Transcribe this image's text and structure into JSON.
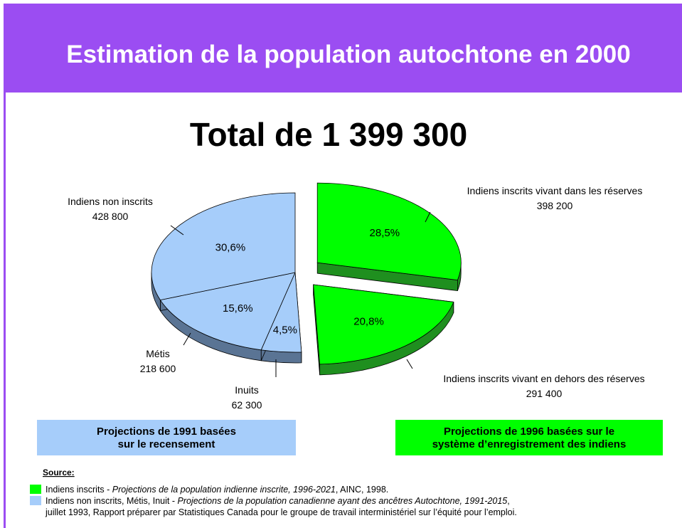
{
  "chart_data": {
    "type": "pie",
    "title": "Estimation de la population autochtone en 2000",
    "subtitle": "Total de 1 399 300",
    "categories": [
      "Indiens inscrits vivant dans les réserves",
      "Indiens inscrits vivant en dehors des réserves",
      "Inuits",
      "Métis",
      "Indiens non inscrits"
    ],
    "values": [
      28.5,
      20.8,
      4.5,
      15.6,
      30.6
    ],
    "value_labels": [
      "28,5%",
      "20,8%",
      "4,5%",
      "15,6%",
      "30,6%"
    ],
    "counts": [
      398200,
      291400,
      62300,
      218600,
      428800
    ],
    "count_labels": [
      "398 200",
      "291 400",
      "62 300",
      "218 600",
      "428 800"
    ],
    "colors": [
      "#00ff00",
      "#00ff00",
      "#a6cdfa",
      "#a6cdfa",
      "#a6cdfa"
    ],
    "side_colors": [
      "#1f8f1f",
      "#1f8f1f",
      "#5a7494",
      "#5a7494",
      "#5a7494"
    ]
  },
  "boxes": [
    {
      "lines": [
        "Projections de 1991 basées",
        "sur le recensement"
      ],
      "color": "#a6cdfa"
    },
    {
      "lines": [
        "Projections de 1996 basées sur le",
        "système d’enregistrement des indiens"
      ],
      "color": "#00ff00"
    }
  ],
  "source": {
    "heading": "Source:",
    "items": [
      {
        "color": "#00ff00",
        "parts": [
          "Indiens inscrits - ",
          "Projections de la population indienne inscrite, 1996-2021",
          ", AINC, 1998."
        ]
      },
      {
        "color": "#a6cdfa",
        "parts": [
          "Indiens non inscrits, Métis, Inuit - ",
          "Projections de la population canadienne ayant des ancêtres Autochtone, 1991-2015",
          ", "
        ],
        "continuation": "juillet 1993, Rapport préparer par Statistiques Canada pour le groupe de travail interministériel sur l’équité pour l’emploi."
      }
    ]
  }
}
